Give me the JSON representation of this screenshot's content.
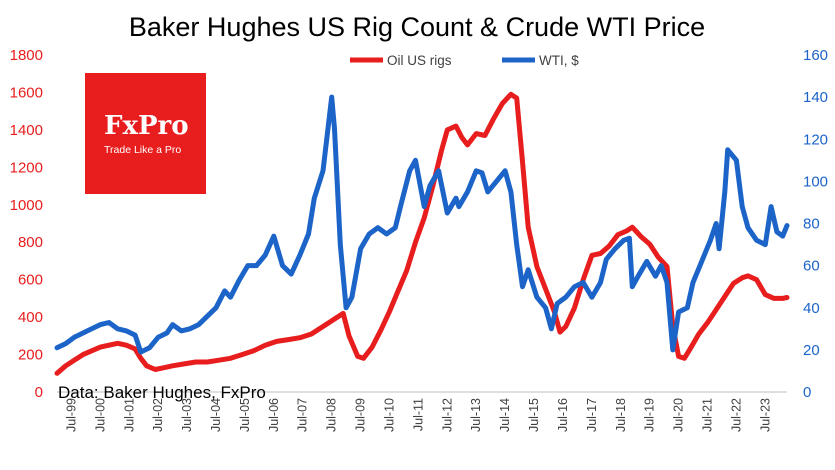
{
  "chart_data": {
    "type": "line",
    "title": "Baker Hughes US Rig Count & Crude WTI Price",
    "source": "Data: Baker Hughes, FxPro",
    "logo": {
      "brand": "FxPro",
      "tagline": "Trade Like a Pro",
      "color": "#e81d1d"
    },
    "x_tick_labels": [
      "Jul-99",
      "Jul-00",
      "Jul-01",
      "Jul-02",
      "Jul-03",
      "Jul-04",
      "Jul-05",
      "Jul-06",
      "Jul-07",
      "Jul-08",
      "Jul-09",
      "Jul-10",
      "Jul-11",
      "Jul-12",
      "Jul-13",
      "Jul-14",
      "Jul-15",
      "Jul-16",
      "Jul-17",
      "Jul-18",
      "Jul-19",
      "Jul-20",
      "Jul-21",
      "Jul-22",
      "Jul-23"
    ],
    "x_range": [
      1999.0,
      2024.25
    ],
    "y_left": {
      "ylim": [
        0,
        1800
      ],
      "ticks": [
        0,
        200,
        400,
        600,
        800,
        1000,
        1200,
        1400,
        1600,
        1800
      ],
      "color": "#e81d1d"
    },
    "y_right": {
      "ylim": [
        0,
        160
      ],
      "ticks": [
        0,
        20,
        40,
        60,
        80,
        100,
        120,
        140,
        160
      ],
      "color": "#1c64c8"
    },
    "legend_position": "top-center",
    "grid": false,
    "series": [
      {
        "name": "Oil US rigs",
        "axis": "left",
        "color": "#e81d1d",
        "points": [
          [
            1999.0,
            100
          ],
          [
            1999.3,
            140
          ],
          [
            1999.6,
            170
          ],
          [
            1999.9,
            200
          ],
          [
            2000.2,
            220
          ],
          [
            2000.5,
            240
          ],
          [
            2000.8,
            250
          ],
          [
            2001.1,
            260
          ],
          [
            2001.4,
            250
          ],
          [
            2001.7,
            230
          ],
          [
            2001.9,
            180
          ],
          [
            2002.1,
            140
          ],
          [
            2002.4,
            120
          ],
          [
            2002.7,
            130
          ],
          [
            2003.0,
            140
          ],
          [
            2003.4,
            150
          ],
          [
            2003.8,
            160
          ],
          [
            2004.2,
            160
          ],
          [
            2004.6,
            170
          ],
          [
            2005.0,
            180
          ],
          [
            2005.4,
            200
          ],
          [
            2005.8,
            220
          ],
          [
            2006.2,
            250
          ],
          [
            2006.6,
            270
          ],
          [
            2007.0,
            280
          ],
          [
            2007.4,
            290
          ],
          [
            2007.8,
            310
          ],
          [
            2008.2,
            350
          ],
          [
            2008.6,
            390
          ],
          [
            2008.9,
            420
          ],
          [
            2009.1,
            300
          ],
          [
            2009.4,
            190
          ],
          [
            2009.6,
            180
          ],
          [
            2009.9,
            240
          ],
          [
            2010.2,
            330
          ],
          [
            2010.5,
            430
          ],
          [
            2010.8,
            540
          ],
          [
            2011.1,
            650
          ],
          [
            2011.4,
            800
          ],
          [
            2011.7,
            930
          ],
          [
            2012.0,
            1100
          ],
          [
            2012.3,
            1290
          ],
          [
            2012.5,
            1400
          ],
          [
            2012.8,
            1420
          ],
          [
            2013.0,
            1360
          ],
          [
            2013.2,
            1320
          ],
          [
            2013.5,
            1380
          ],
          [
            2013.8,
            1370
          ],
          [
            2014.1,
            1460
          ],
          [
            2014.4,
            1540
          ],
          [
            2014.7,
            1590
          ],
          [
            2014.9,
            1570
          ],
          [
            2015.1,
            1230
          ],
          [
            2015.3,
            880
          ],
          [
            2015.6,
            670
          ],
          [
            2015.9,
            550
          ],
          [
            2016.2,
            430
          ],
          [
            2016.4,
            320
          ],
          [
            2016.6,
            350
          ],
          [
            2016.9,
            450
          ],
          [
            2017.2,
            600
          ],
          [
            2017.5,
            730
          ],
          [
            2017.8,
            740
          ],
          [
            2018.1,
            780
          ],
          [
            2018.4,
            840
          ],
          [
            2018.7,
            860
          ],
          [
            2018.9,
            880
          ],
          [
            2019.2,
            830
          ],
          [
            2019.5,
            790
          ],
          [
            2019.8,
            720
          ],
          [
            2020.1,
            670
          ],
          [
            2020.3,
            350
          ],
          [
            2020.5,
            190
          ],
          [
            2020.7,
            180
          ],
          [
            2020.9,
            230
          ],
          [
            2021.2,
            310
          ],
          [
            2021.5,
            370
          ],
          [
            2021.8,
            440
          ],
          [
            2022.1,
            510
          ],
          [
            2022.4,
            580
          ],
          [
            2022.7,
            610
          ],
          [
            2022.9,
            620
          ],
          [
            2023.2,
            600
          ],
          [
            2023.5,
            520
          ],
          [
            2023.8,
            500
          ],
          [
            2024.1,
            500
          ],
          [
            2024.25,
            505
          ]
        ]
      },
      {
        "name": "WTI, $",
        "axis": "right",
        "color": "#1c64c8",
        "points": [
          [
            1999.0,
            21
          ],
          [
            1999.3,
            23
          ],
          [
            1999.6,
            26
          ],
          [
            1999.9,
            28
          ],
          [
            2000.2,
            30
          ],
          [
            2000.5,
            32
          ],
          [
            2000.8,
            33
          ],
          [
            2001.1,
            30
          ],
          [
            2001.4,
            29
          ],
          [
            2001.7,
            27
          ],
          [
            2001.9,
            19
          ],
          [
            2002.2,
            21
          ],
          [
            2002.5,
            26
          ],
          [
            2002.8,
            28
          ],
          [
            2003.0,
            32
          ],
          [
            2003.3,
            29
          ],
          [
            2003.6,
            30
          ],
          [
            2003.9,
            32
          ],
          [
            2004.2,
            36
          ],
          [
            2004.5,
            40
          ],
          [
            2004.8,
            48
          ],
          [
            2005.0,
            45
          ],
          [
            2005.3,
            53
          ],
          [
            2005.6,
            60
          ],
          [
            2005.9,
            60
          ],
          [
            2006.2,
            65
          ],
          [
            2006.5,
            74
          ],
          [
            2006.8,
            60
          ],
          [
            2007.1,
            56
          ],
          [
            2007.4,
            65
          ],
          [
            2007.7,
            75
          ],
          [
            2007.9,
            92
          ],
          [
            2008.2,
            105
          ],
          [
            2008.5,
            140
          ],
          [
            2008.6,
            125
          ],
          [
            2008.8,
            70
          ],
          [
            2009.0,
            40
          ],
          [
            2009.2,
            45
          ],
          [
            2009.5,
            68
          ],
          [
            2009.8,
            75
          ],
          [
            2010.1,
            78
          ],
          [
            2010.4,
            75
          ],
          [
            2010.7,
            78
          ],
          [
            2010.9,
            89
          ],
          [
            2011.2,
            105
          ],
          [
            2011.4,
            110
          ],
          [
            2011.7,
            88
          ],
          [
            2011.9,
            98
          ],
          [
            2012.2,
            105
          ],
          [
            2012.5,
            85
          ],
          [
            2012.8,
            92
          ],
          [
            2012.9,
            88
          ],
          [
            2013.2,
            95
          ],
          [
            2013.5,
            105
          ],
          [
            2013.7,
            104
          ],
          [
            2013.9,
            95
          ],
          [
            2014.2,
            100
          ],
          [
            2014.5,
            105
          ],
          [
            2014.7,
            95
          ],
          [
            2014.9,
            70
          ],
          [
            2015.1,
            50
          ],
          [
            2015.3,
            58
          ],
          [
            2015.6,
            45
          ],
          [
            2015.9,
            40
          ],
          [
            2016.1,
            30
          ],
          [
            2016.3,
            42
          ],
          [
            2016.6,
            45
          ],
          [
            2016.9,
            50
          ],
          [
            2017.2,
            52
          ],
          [
            2017.5,
            45
          ],
          [
            2017.8,
            52
          ],
          [
            2018.0,
            63
          ],
          [
            2018.3,
            68
          ],
          [
            2018.6,
            72
          ],
          [
            2018.8,
            73
          ],
          [
            2018.9,
            50
          ],
          [
            2019.1,
            55
          ],
          [
            2019.4,
            62
          ],
          [
            2019.7,
            55
          ],
          [
            2019.9,
            60
          ],
          [
            2020.1,
            52
          ],
          [
            2020.3,
            20
          ],
          [
            2020.5,
            38
          ],
          [
            2020.8,
            40
          ],
          [
            2021.0,
            52
          ],
          [
            2021.3,
            62
          ],
          [
            2021.6,
            72
          ],
          [
            2021.8,
            80
          ],
          [
            2021.9,
            68
          ],
          [
            2022.1,
            95
          ],
          [
            2022.2,
            115
          ],
          [
            2022.5,
            110
          ],
          [
            2022.7,
            88
          ],
          [
            2022.9,
            78
          ],
          [
            2023.2,
            72
          ],
          [
            2023.5,
            70
          ],
          [
            2023.7,
            88
          ],
          [
            2023.9,
            76
          ],
          [
            2024.1,
            74
          ],
          [
            2024.25,
            79
          ]
        ]
      }
    ]
  }
}
